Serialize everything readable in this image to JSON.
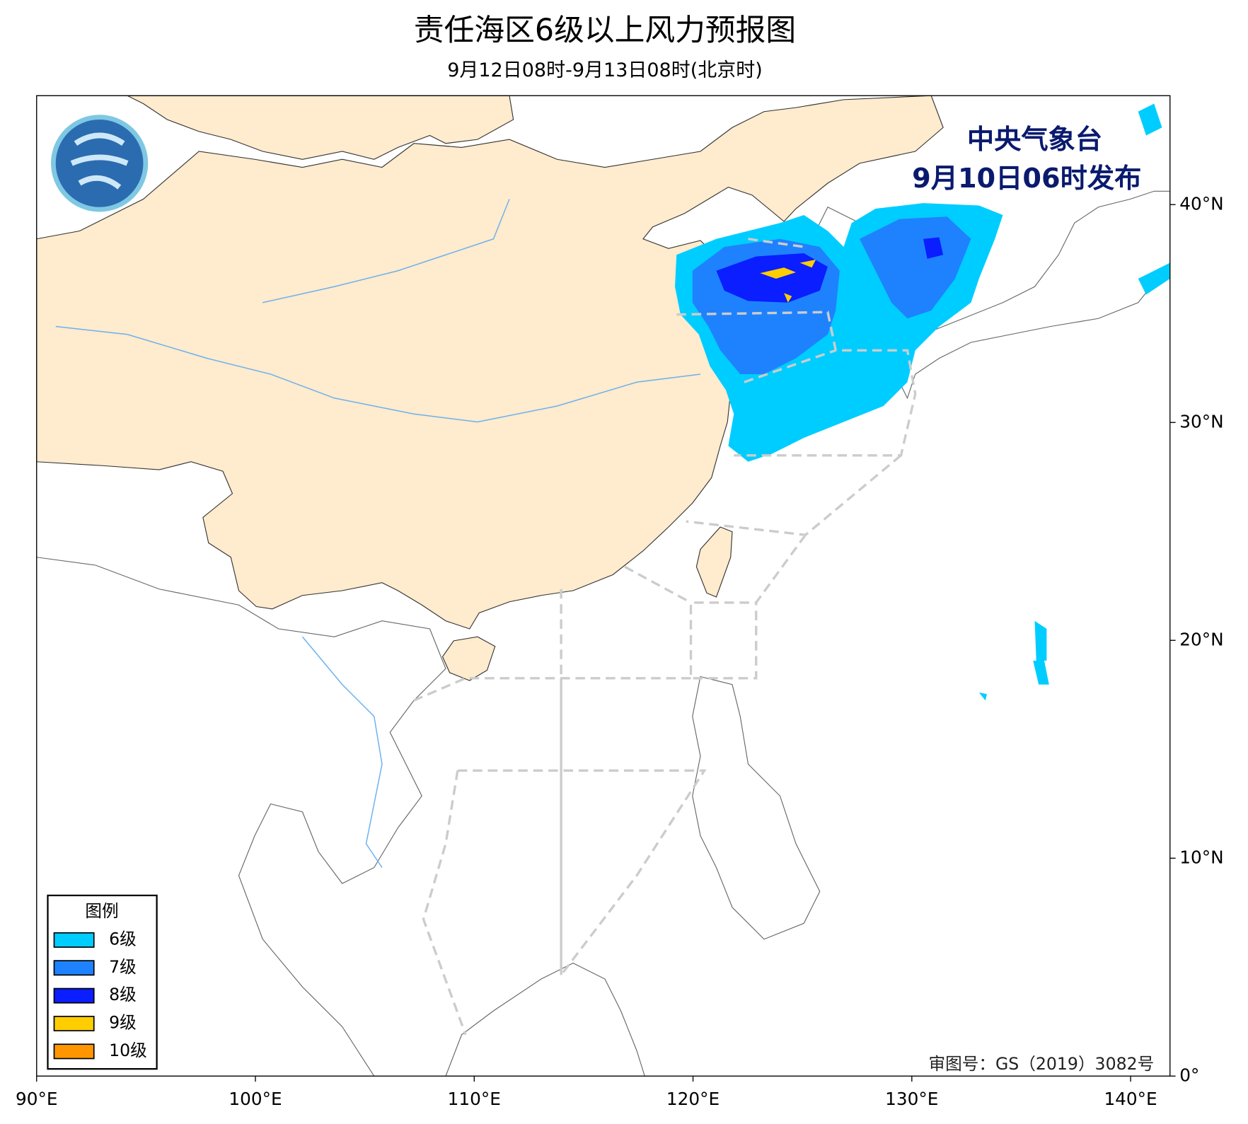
{
  "header": {
    "title": "责任海区6级以上风力预报图",
    "subtitle": "9月12日08时-9月13日08时(北京时)"
  },
  "issuer": {
    "agency": "中央气象台",
    "issued": "9月10日06时发布"
  },
  "map": {
    "xlim": [
      90,
      141.8
    ],
    "ylim": [
      0,
      45
    ],
    "xticks": [
      {
        "value": 90,
        "label": "90°E"
      },
      {
        "value": 100,
        "label": "100°E"
      },
      {
        "value": 110,
        "label": "110°E"
      },
      {
        "value": 120,
        "label": "120°E"
      },
      {
        "value": 130,
        "label": "130°E"
      },
      {
        "value": 140,
        "label": "140°E"
      }
    ],
    "yticks": [
      {
        "value": 0,
        "label": "0°"
      },
      {
        "value": 10,
        "label": "10°N"
      },
      {
        "value": 20,
        "label": "20°N"
      },
      {
        "value": 30,
        "label": "30°N"
      },
      {
        "value": 40,
        "label": "40°N"
      }
    ]
  },
  "legend": {
    "title": "图例",
    "items": [
      {
        "label": "6级",
        "color": "#00cdff"
      },
      {
        "label": "7级",
        "color": "#1e82ff"
      },
      {
        "label": "8级",
        "color": "#0a1eff"
      },
      {
        "label": "9级",
        "color": "#ffcd00"
      },
      {
        "label": "10级",
        "color": "#ff9600"
      }
    ]
  },
  "approval": "审图号：GS（2019）3082号"
}
